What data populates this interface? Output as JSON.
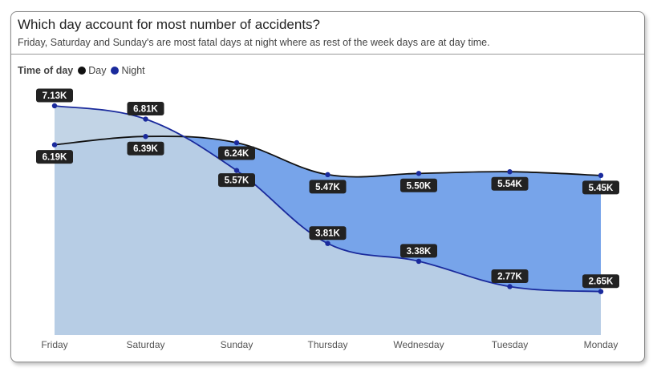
{
  "title": "Which day account for most number of accidents?",
  "subtitle": "Friday, Saturday and Sunday's are most fatal days at night where as rest of the week days are at day time.",
  "legend": {
    "title": "Time of day",
    "items": [
      {
        "label": "Day",
        "color": "#111111"
      },
      {
        "label": "Night",
        "color": "#1a2a9c"
      }
    ]
  },
  "chart_data": {
    "type": "area",
    "categories": [
      "Friday",
      "Saturday",
      "Sunday",
      "Thursday",
      "Wednesday",
      "Tuesday",
      "Monday"
    ],
    "series": [
      {
        "name": "Day",
        "values": [
          6190,
          6390,
          6240,
          5470,
          5500,
          5540,
          5450
        ],
        "labels": [
          "6.19K",
          "6.39K",
          "6.24K",
          "5.47K",
          "5.50K",
          "5.54K",
          "5.45K"
        ],
        "color": "#111111"
      },
      {
        "name": "Night",
        "values": [
          7130,
          6810,
          5570,
          3810,
          3380,
          2770,
          2650
        ],
        "labels": [
          "7.13K",
          "6.81K",
          "5.57K",
          "3.81K",
          "3.38K",
          "2.77K",
          "2.65K"
        ],
        "color": "#1a2a9c"
      }
    ],
    "ylim": [
      1600,
      7400
    ],
    "grid": false,
    "legend_position": "top-left",
    "fill_below": "#bdd0e4",
    "fill_between": "#77a4ea"
  }
}
